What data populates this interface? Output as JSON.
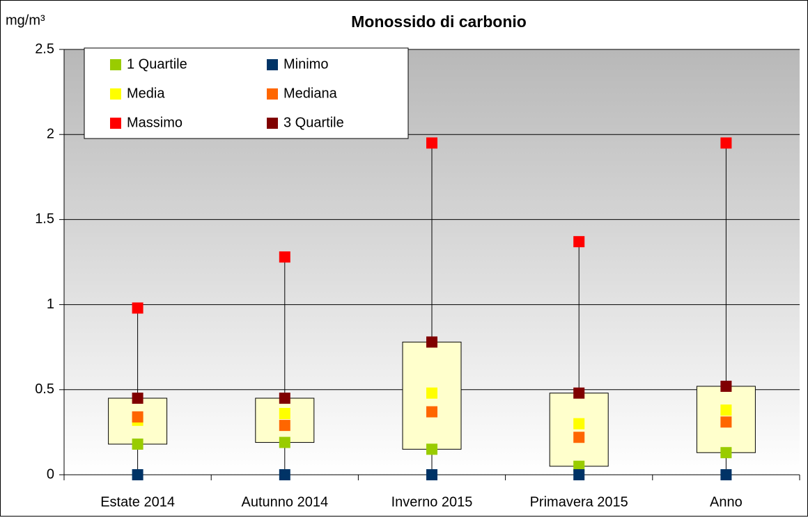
{
  "chart_data": {
    "type": "box",
    "title": "Monossido di carbonio",
    "y_label": "mg/m³",
    "categories": [
      "Estate 2014",
      "Autunno 2014",
      "Inverno 2015",
      "Primavera 2015",
      "Anno"
    ],
    "series": [
      {
        "name": "1 Quartile",
        "color": "#99cc00",
        "values": [
          0.18,
          0.19,
          0.15,
          0.05,
          0.13
        ]
      },
      {
        "name": "Minimo",
        "color": "#003366",
        "values": [
          0,
          0,
          0,
          0,
          0
        ]
      },
      {
        "name": "Media",
        "color": "#ffff00",
        "values": [
          0.32,
          0.36,
          0.48,
          0.3,
          0.38
        ]
      },
      {
        "name": "Mediana",
        "color": "#ff6600",
        "values": [
          0.34,
          0.29,
          0.37,
          0.22,
          0.31
        ]
      },
      {
        "name": "Massimo",
        "color": "#ff0000",
        "values": [
          0.98,
          1.28,
          1.95,
          1.37,
          1.95
        ]
      },
      {
        "name": "3 Quartile",
        "color": "#800000",
        "values": [
          0.45,
          0.45,
          0.78,
          0.48,
          0.52
        ]
      }
    ],
    "box_color": "#ffffcc",
    "ylim": [
      0,
      2.5
    ],
    "yticks": [
      0,
      0.5,
      1,
      1.5,
      2,
      2.5
    ],
    "grid": true,
    "legend": "top-left"
  }
}
